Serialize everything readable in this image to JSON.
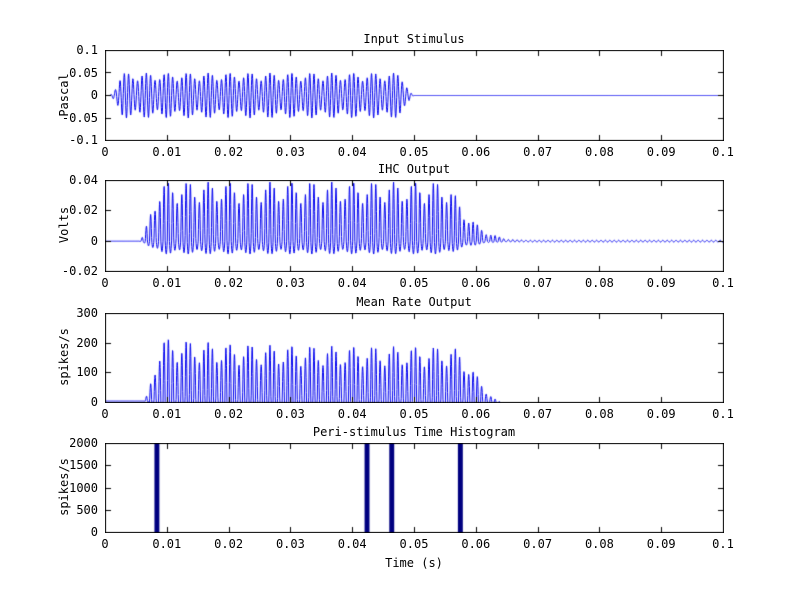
{
  "figure": {
    "background": "#ffffff",
    "axis_color": "#000000",
    "text_color": "#000000",
    "line_color": "#0000ee",
    "bar_color": "#000080"
  },
  "chart_data": [
    {
      "type": "line",
      "title": "Input Stimulus",
      "ylabel": "Pascal",
      "xlabel": "",
      "xlim": [
        0,
        0.1
      ],
      "ylim": [
        -0.1,
        0.1
      ],
      "x_ticks": [
        0,
        0.01,
        0.02,
        0.03,
        0.04,
        0.05,
        0.06,
        0.07,
        0.08,
        0.09,
        0.1
      ],
      "x_tick_labels": [
        "0",
        "0.01",
        "0.02",
        "0.03",
        "0.04",
        "0.05",
        "0.06",
        "0.07",
        "0.08",
        "0.09",
        "0.1"
      ],
      "y_ticks": [
        -0.1,
        -0.05,
        0,
        0.05,
        0.1
      ],
      "y_tick_labels": [
        "-0.1",
        "-0.05",
        "0",
        "0.05",
        "0.1"
      ],
      "grid": false,
      "signal": {
        "kind": "tone_burst",
        "carrier_hz": 1400,
        "second_tone_hz": 1700,
        "mix": [
          0.82,
          0.18
        ],
        "amplitude_pa": 0.05,
        "burst_start_s": 0.0005,
        "ramp_on_s": 0.0025,
        "burst_end_s": 0.05,
        "ramp_off_s": 0.0025,
        "silence_value": 0
      }
    },
    {
      "type": "line",
      "title": "IHC Output",
      "ylabel": "Volts",
      "xlabel": "",
      "xlim": [
        0,
        0.1
      ],
      "ylim": [
        -0.02,
        0.04
      ],
      "x_ticks": [
        0,
        0.01,
        0.02,
        0.03,
        0.04,
        0.05,
        0.06,
        0.07,
        0.08,
        0.09,
        0.1
      ],
      "x_tick_labels": [
        "0",
        "0.01",
        "0.02",
        "0.03",
        "0.04",
        "0.05",
        "0.06",
        "0.07",
        "0.08",
        "0.09",
        "0.1"
      ],
      "y_ticks": [
        -0.02,
        0,
        0.02,
        0.04
      ],
      "y_tick_labels": [
        "-0.02",
        "0",
        "0.02",
        "0.04"
      ],
      "grid": false,
      "signal": {
        "kind": "rectified_tone",
        "carrier_hz": 1400,
        "second_tone_hz": 1700,
        "mix": [
          0.82,
          0.18
        ],
        "pos_peak_v": 0.039,
        "neg_trough_v": -0.0085,
        "latency_s": 0.0052,
        "rise_s": 0.0042,
        "sustain_end_s": 0.0555,
        "decay_end_s": 0.071,
        "residual_ripple_v": 0.0006
      }
    },
    {
      "type": "line",
      "title": "Mean Rate Output",
      "ylabel": "spikes/s",
      "xlabel": "",
      "xlim": [
        0,
        0.1
      ],
      "ylim": [
        0,
        300
      ],
      "x_ticks": [
        0,
        0.01,
        0.02,
        0.03,
        0.04,
        0.05,
        0.06,
        0.07,
        0.08,
        0.09,
        0.1
      ],
      "x_tick_labels": [
        "0",
        "0.01",
        "0.02",
        "0.03",
        "0.04",
        "0.05",
        "0.06",
        "0.07",
        "0.08",
        "0.09",
        "0.1"
      ],
      "y_ticks": [
        0,
        100,
        200,
        300
      ],
      "y_tick_labels": [
        "0",
        "100",
        "200",
        "300"
      ],
      "grid": false,
      "signal": {
        "kind": "half_wave_rate",
        "carrier_hz": 1400,
        "second_tone_hz": 1700,
        "mix": [
          0.82,
          0.18
        ],
        "onset_s": 0.006,
        "peak_rate": 230,
        "adapted_rate": 188,
        "adapt_tau_s": 0.01,
        "sustain_end_s": 0.0555,
        "offset_end_s": 0.0645,
        "baseline_rate": 5
      }
    },
    {
      "type": "bar",
      "title": "Peri-stimulus Time Histogram",
      "ylabel": "spikes/s",
      "xlabel": "Time (s)",
      "xlim": [
        0,
        0.1
      ],
      "ylim": [
        0,
        2000
      ],
      "x_ticks": [
        0,
        0.01,
        0.02,
        0.03,
        0.04,
        0.05,
        0.06,
        0.07,
        0.08,
        0.09,
        0.1
      ],
      "x_tick_labels": [
        "0",
        "0.01",
        "0.02",
        "0.03",
        "0.04",
        "0.05",
        "0.06",
        "0.07",
        "0.08",
        "0.09",
        "0.1"
      ],
      "y_ticks": [
        0,
        500,
        1000,
        1500,
        2000
      ],
      "y_tick_labels": [
        "0",
        "500",
        "1000",
        "1500",
        "2000"
      ],
      "grid": false,
      "bars": {
        "x_s": [
          0.0084,
          0.0424,
          0.0464,
          0.0575
        ],
        "height_spikes_per_s": [
          2000,
          2000,
          2000,
          2000
        ],
        "width_s": 0.0008
      }
    }
  ]
}
